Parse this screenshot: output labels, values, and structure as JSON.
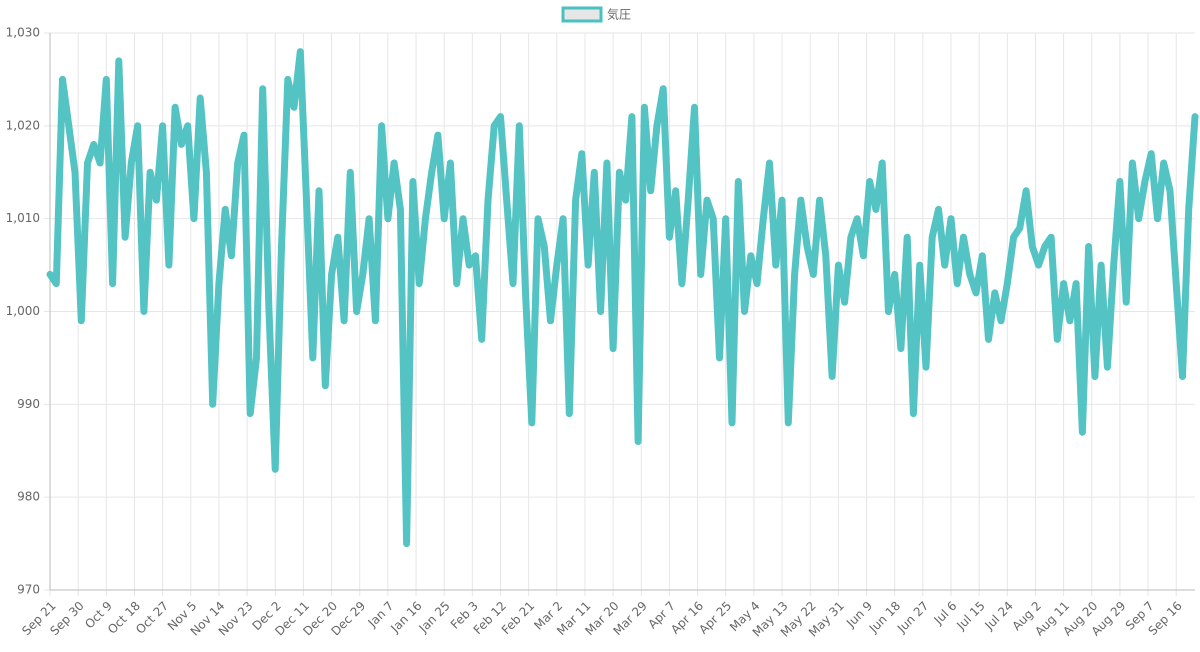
{
  "chart_data": {
    "type": "line",
    "x": [
      0,
      2,
      4,
      6,
      8,
      10,
      12,
      14,
      16,
      18,
      20,
      22,
      24,
      26,
      28,
      30,
      32,
      34,
      36,
      38,
      40,
      42,
      44,
      46,
      48,
      50,
      52,
      54,
      56,
      58,
      60,
      62,
      64,
      66,
      68,
      70,
      72,
      74,
      76,
      78,
      80,
      82,
      84,
      86,
      88,
      90,
      92,
      94,
      96,
      98,
      100,
      102,
      104,
      106,
      108,
      110,
      112,
      114,
      116,
      118,
      120,
      122,
      124,
      126,
      128,
      130,
      132,
      134,
      136,
      138,
      140,
      142,
      144,
      146,
      148,
      150,
      152,
      154,
      156,
      158,
      160,
      162,
      164,
      166,
      168,
      170,
      172,
      174,
      176,
      178,
      180,
      182,
      184,
      186,
      188,
      190,
      192,
      194,
      196,
      198,
      200,
      202,
      204,
      206,
      208,
      210,
      212,
      214,
      216,
      218,
      220,
      222,
      224,
      226,
      228,
      230,
      232,
      234,
      236,
      238,
      240,
      242,
      244,
      246,
      248,
      250,
      252,
      254,
      256,
      258,
      260,
      262,
      264,
      266,
      268,
      270,
      272,
      274,
      276,
      278,
      280,
      282,
      284,
      286,
      288,
      290,
      292,
      294,
      296,
      298,
      300,
      302,
      304,
      306,
      308,
      310,
      312,
      314,
      316,
      318,
      320,
      322,
      324,
      326,
      328,
      330,
      332,
      334,
      336,
      338,
      340,
      342,
      344,
      346,
      348,
      350,
      352,
      354,
      356,
      358,
      360,
      362,
      364,
      366
    ],
    "series": [
      {
        "name": "気圧",
        "color": "#4bc0c0",
        "values": [
          1004,
          1003,
          1025,
          1020,
          1015,
          999,
          1016,
          1018,
          1016,
          1025,
          1003,
          1027,
          1008,
          1016,
          1020,
          1000,
          1015,
          1012,
          1020,
          1005,
          1022,
          1018,
          1020,
          1010,
          1023,
          1015,
          990,
          1003,
          1011,
          1006,
          1016,
          1019,
          989,
          995,
          1024,
          1000,
          983,
          1007,
          1025,
          1022,
          1028,
          1012,
          995,
          1013,
          992,
          1004,
          1008,
          999,
          1015,
          1000,
          1004,
          1010,
          999,
          1020,
          1010,
          1016,
          1011,
          975,
          1014,
          1003,
          1010,
          1015,
          1019,
          1010,
          1016,
          1003,
          1010,
          1005,
          1006,
          997,
          1012,
          1020,
          1021,
          1012,
          1003,
          1020,
          1002,
          988,
          1010,
          1007,
          999,
          1005,
          1010,
          989,
          1012,
          1017,
          1005,
          1015,
          1000,
          1016,
          996,
          1015,
          1012,
          1021,
          986,
          1022,
          1013,
          1020,
          1024,
          1008,
          1013,
          1003,
          1012,
          1022,
          1004,
          1012,
          1010,
          995,
          1010,
          988,
          1014,
          1000,
          1006,
          1003,
          1010,
          1016,
          1005,
          1012,
          988,
          1004,
          1012,
          1007,
          1004,
          1012,
          1006,
          993,
          1005,
          1001,
          1008,
          1010,
          1006,
          1014,
          1011,
          1016,
          1000,
          1004,
          996,
          1008,
          989,
          1005,
          994,
          1008,
          1011,
          1005,
          1010,
          1003,
          1008,
          1004,
          1002,
          1006,
          997,
          1002,
          999,
          1003,
          1008,
          1009,
          1013,
          1007,
          1005,
          1007,
          1008,
          997,
          1003,
          999,
          1003,
          987,
          1007,
          993,
          1005,
          994,
          1005,
          1014,
          1001,
          1016,
          1010,
          1014,
          1017,
          1010,
          1016,
          1013,
          1003,
          993,
          1011,
          1021
        ]
      }
    ],
    "xlim": [
      0,
      366
    ],
    "xticks": [
      {
        "value": 0,
        "label": "Sep 21"
      },
      {
        "value": 9,
        "label": "Sep 30"
      },
      {
        "value": 18,
        "label": "Oct 9"
      },
      {
        "value": 27,
        "label": "Oct 18"
      },
      {
        "value": 36,
        "label": "Oct 27"
      },
      {
        "value": 45,
        "label": "Nov 5"
      },
      {
        "value": 54,
        "label": "Nov 14"
      },
      {
        "value": 63,
        "label": "Nov 23"
      },
      {
        "value": 72,
        "label": "Dec 2"
      },
      {
        "value": 81,
        "label": "Dec 11"
      },
      {
        "value": 90,
        "label": "Dec 20"
      },
      {
        "value": 99,
        "label": "Dec 29"
      },
      {
        "value": 108,
        "label": "Jan 7"
      },
      {
        "value": 117,
        "label": "Jan 16"
      },
      {
        "value": 126,
        "label": "Jan 25"
      },
      {
        "value": 135,
        "label": "Feb 3"
      },
      {
        "value": 144,
        "label": "Feb 12"
      },
      {
        "value": 153,
        "label": "Feb 21"
      },
      {
        "value": 162,
        "label": "Mar 2"
      },
      {
        "value": 171,
        "label": "Mar 11"
      },
      {
        "value": 180,
        "label": "Mar 20"
      },
      {
        "value": 189,
        "label": "Mar 29"
      },
      {
        "value": 198,
        "label": "Apr 7"
      },
      {
        "value": 207,
        "label": "Apr 16"
      },
      {
        "value": 216,
        "label": "Apr 25"
      },
      {
        "value": 225,
        "label": "May 4"
      },
      {
        "value": 234,
        "label": "May 13"
      },
      {
        "value": 243,
        "label": "May 22"
      },
      {
        "value": 252,
        "label": "May 31"
      },
      {
        "value": 261,
        "label": "Jun 9"
      },
      {
        "value": 270,
        "label": "Jun 18"
      },
      {
        "value": 279,
        "label": "Jun 27"
      },
      {
        "value": 288,
        "label": "Jul 6"
      },
      {
        "value": 297,
        "label": "Jul 15"
      },
      {
        "value": 306,
        "label": "Jul 24"
      },
      {
        "value": 315,
        "label": "Aug 2"
      },
      {
        "value": 324,
        "label": "Aug 11"
      },
      {
        "value": 333,
        "label": "Aug 20"
      },
      {
        "value": 342,
        "label": "Aug 29"
      },
      {
        "value": 351,
        "label": "Sep 7"
      },
      {
        "value": 360,
        "label": "Sep 16"
      }
    ],
    "ylim": [
      970,
      1030
    ],
    "yticks": [
      970,
      980,
      990,
      {
        "value": 1000,
        "label": "1,000"
      },
      {
        "value": 1010,
        "label": "1,010"
      },
      {
        "value": 1020,
        "label": "1,020"
      },
      {
        "value": 1030,
        "label": "1,030"
      }
    ],
    "grid": true
  }
}
